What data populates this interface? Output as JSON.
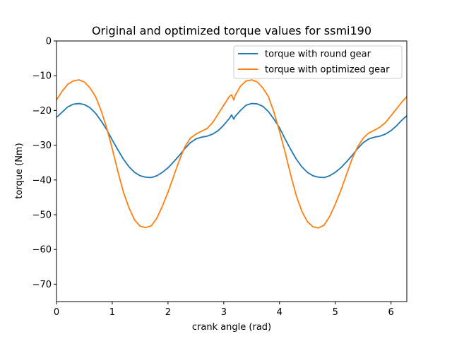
{
  "chart_data": {
    "type": "line",
    "title": "Original and optimized torque values for ssmi190",
    "xlabel": "crank angle (rad)",
    "ylabel": "torque (Nm)",
    "xlim": [
      0,
      6.283
    ],
    "ylim": [
      -75,
      0
    ],
    "xticks": [
      0,
      1,
      2,
      3,
      4,
      5,
      6
    ],
    "yticks": [
      0,
      -10,
      -20,
      -30,
      -40,
      -50,
      -60,
      -70
    ],
    "grid": false,
    "legend_position": "top-right",
    "series": [
      {
        "name": "torque with round gear",
        "color": "#1f77b4",
        "x": [
          0,
          0.1,
          0.2,
          0.3,
          0.4,
          0.5,
          0.6,
          0.7,
          0.8,
          0.9,
          1.0,
          1.1,
          1.2,
          1.3,
          1.4,
          1.5,
          1.6,
          1.7,
          1.8,
          1.9,
          2.0,
          2.1,
          2.2,
          2.3,
          2.4,
          2.5,
          2.6,
          2.7,
          2.8,
          2.9,
          3.0,
          3.1,
          3.14,
          3.18,
          3.2,
          3.3,
          3.4,
          3.5,
          3.6,
          3.7,
          3.8,
          3.9,
          4.0,
          4.1,
          4.2,
          4.3,
          4.4,
          4.5,
          4.6,
          4.7,
          4.8,
          4.9,
          5.0,
          5.1,
          5.2,
          5.3,
          5.4,
          5.5,
          5.6,
          5.7,
          5.8,
          5.9,
          6.0,
          6.1,
          6.2,
          6.283
        ],
        "y": [
          -22.0,
          -20.5,
          -19.0,
          -18.2,
          -18.0,
          -18.3,
          -19.2,
          -20.8,
          -23.0,
          -25.5,
          -28.5,
          -31.3,
          -34.0,
          -36.2,
          -37.8,
          -38.8,
          -39.2,
          -39.3,
          -38.8,
          -37.8,
          -36.5,
          -34.8,
          -33.0,
          -31.0,
          -29.3,
          -28.2,
          -27.7,
          -27.4,
          -26.8,
          -25.8,
          -24.2,
          -22.3,
          -21.3,
          -22.5,
          -21.8,
          -20.0,
          -18.5,
          -18.0,
          -18.1,
          -18.8,
          -20.3,
          -22.5,
          -25.0,
          -28.2,
          -31.2,
          -34.0,
          -36.2,
          -37.8,
          -38.8,
          -39.2,
          -39.3,
          -38.8,
          -37.8,
          -36.5,
          -34.8,
          -33.0,
          -31.0,
          -29.3,
          -28.2,
          -27.7,
          -27.4,
          -26.8,
          -25.8,
          -24.4,
          -22.7,
          -21.5
        ]
      },
      {
        "name": "torque with optimized gear",
        "color": "#ff7f0e",
        "x": [
          0,
          0.1,
          0.2,
          0.3,
          0.4,
          0.5,
          0.6,
          0.7,
          0.8,
          0.9,
          1.0,
          1.1,
          1.2,
          1.3,
          1.4,
          1.5,
          1.6,
          1.7,
          1.8,
          1.9,
          2.0,
          2.1,
          2.2,
          2.3,
          2.4,
          2.5,
          2.6,
          2.7,
          2.8,
          2.9,
          3.0,
          3.1,
          3.14,
          3.18,
          3.2,
          3.3,
          3.4,
          3.5,
          3.6,
          3.7,
          3.8,
          3.9,
          4.0,
          4.1,
          4.2,
          4.3,
          4.4,
          4.5,
          4.6,
          4.7,
          4.8,
          4.9,
          5.0,
          5.1,
          5.2,
          5.3,
          5.4,
          5.5,
          5.6,
          5.7,
          5.8,
          5.9,
          6.0,
          6.1,
          6.2,
          6.283
        ],
        "y": [
          -17.0,
          -14.5,
          -12.5,
          -11.5,
          -11.2,
          -11.8,
          -13.5,
          -16.0,
          -20.0,
          -25.0,
          -31.0,
          -37.5,
          -43.5,
          -48.0,
          -51.5,
          -53.3,
          -53.7,
          -53.2,
          -51.0,
          -47.5,
          -43.5,
          -39.0,
          -34.5,
          -30.5,
          -28.0,
          -26.8,
          -26.0,
          -25.2,
          -23.5,
          -21.0,
          -18.5,
          -16.0,
          -15.5,
          -17.0,
          -15.8,
          -13.0,
          -11.5,
          -11.2,
          -11.8,
          -13.5,
          -16.0,
          -20.5,
          -26.0,
          -32.0,
          -38.5,
          -44.5,
          -49.0,
          -52.0,
          -53.5,
          -53.8,
          -53.0,
          -50.5,
          -47.0,
          -43.0,
          -38.5,
          -34.0,
          -30.5,
          -28.0,
          -26.5,
          -25.7,
          -24.8,
          -23.5,
          -21.5,
          -19.5,
          -17.5,
          -16.0
        ]
      }
    ]
  }
}
